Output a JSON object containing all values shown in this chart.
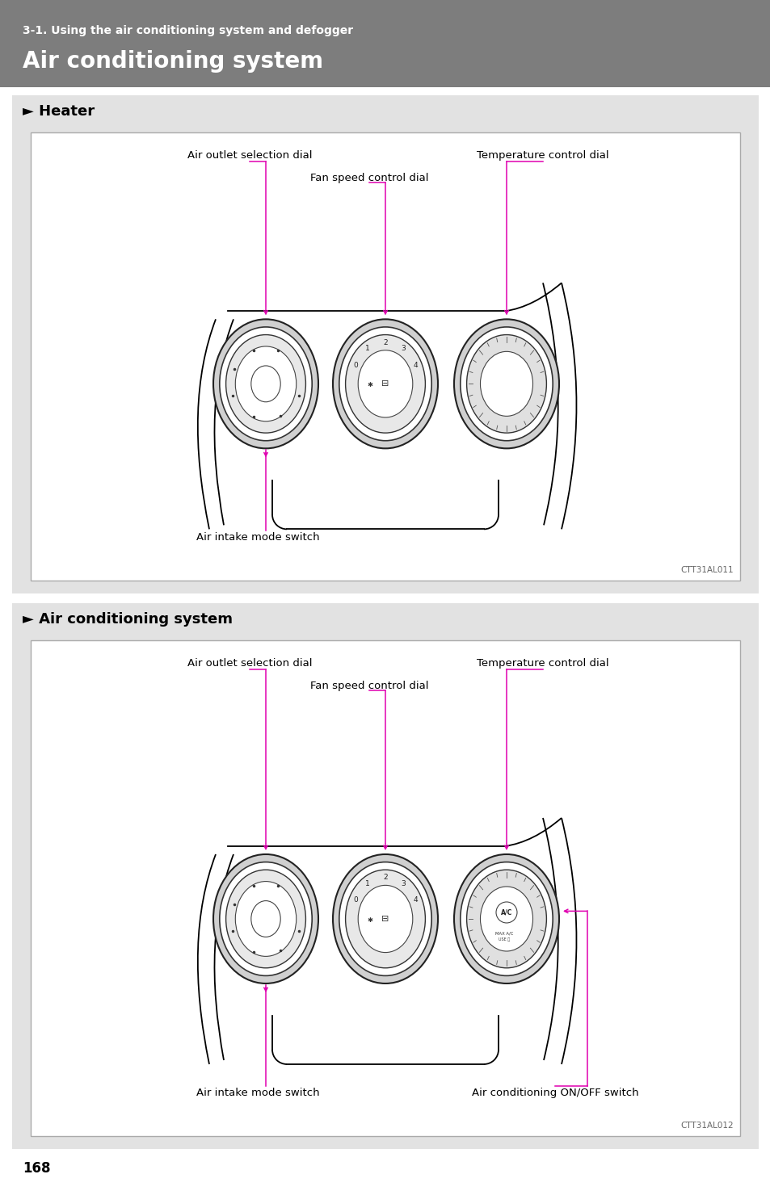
{
  "bg_color": "#ffffff",
  "header_bg": "#7d7d7d",
  "header_subtitle": "3-1. Using the air conditioning system and defogger",
  "header_title": "Air conditioning system",
  "section_bg": "#e2e2e2",
  "panel_bg": "#ffffff",
  "magenta": "#e000b0",
  "section1_label": "► Heater",
  "section2_label": "► Air conditioning system",
  "label_air_outlet": "Air outlet selection dial",
  "label_fan_speed": "Fan speed control dial",
  "label_temp_control": "Temperature control dial",
  "label_air_intake": "Air intake mode switch",
  "label_ac_switch": "Air conditioning ON/OFF switch",
  "code1": "CTT31AL011",
  "code2": "CTT31AL012",
  "page_number": "168",
  "font_size_label": 9.5,
  "font_size_section": 13,
  "font_size_header_sub": 10,
  "font_size_header_main": 20,
  "font_size_code": 7.5,
  "font_size_page": 12
}
